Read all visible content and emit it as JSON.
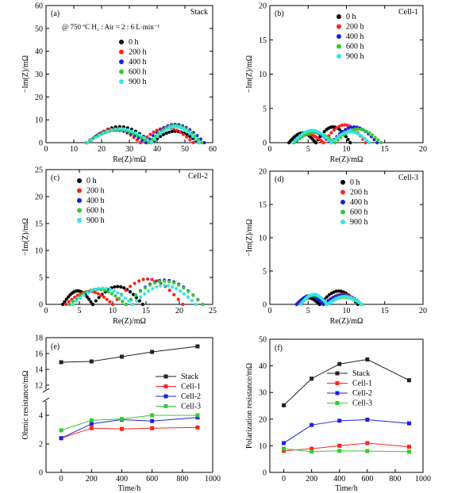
{
  "figure": {
    "panel_labels": [
      "(a)",
      "(b)",
      "(c)",
      "(d)",
      "(e)",
      "(f)"
    ],
    "titles": [
      "Stack",
      "Cell-1",
      "Cell-2",
      "Cell-3"
    ],
    "condition_note": "@ 750 ºC  H₂ : Air = 2 : 6 L·min⁻¹",
    "colors": {
      "0 h": "#000000",
      "200 h": "#ff2222",
      "400 h": "#1f1fe0",
      "600 h": "#33cc33",
      "900 h": "#33e6e6"
    }
  },
  "chart_data": [
    {
      "type": "scatter",
      "panel": "(a)",
      "title": "Stack",
      "xlabel": "Re(Z)/mΩ",
      "ylabel": "−Im(Z)/mΩ",
      "xlim": [
        0,
        60
      ],
      "ylim": [
        0,
        60
      ],
      "xticks": [
        0,
        10,
        20,
        30,
        40,
        50,
        60
      ],
      "yticks": [
        0,
        10,
        20,
        30,
        40,
        50,
        60
      ],
      "legend_position": "upper-middle",
      "series": [
        {
          "name": "0 h",
          "arcs": [
            [
              15,
              38,
              7.0
            ],
            [
              38,
              55,
              5.0
            ]
          ]
        },
        {
          "name": "200 h",
          "arcs": [
            [
              15,
              34,
              6.0
            ],
            [
              34,
              53,
              6.5
            ]
          ]
        },
        {
          "name": "400 h",
          "arcs": [
            [
              14.5,
              36,
              5.5
            ],
            [
              36,
              57,
              8.0
            ]
          ]
        },
        {
          "name": "600 h",
          "arcs": [
            [
              14.5,
              37,
              5.5
            ],
            [
              37,
              56,
              7.5
            ]
          ]
        },
        {
          "name": "900 h",
          "arcs": [
            [
              15,
              38,
              6.0
            ],
            [
              38,
              55,
              7.0
            ]
          ]
        }
      ]
    },
    {
      "type": "scatter",
      "panel": "(b)",
      "title": "Cell-1",
      "xlabel": "Re(Z)/mΩ",
      "ylabel": "−Im(Z)/mΩ",
      "xlim": [
        0,
        20
      ],
      "ylim": [
        0,
        20
      ],
      "xticks": [
        0,
        5,
        10,
        15,
        20
      ],
      "yticks": [
        0,
        5,
        10,
        15,
        20
      ],
      "legend_position": "top-left",
      "series": [
        {
          "name": "0 h",
          "arcs": [
            [
              2.5,
              6,
              1.4
            ],
            [
              6,
              10.5,
              2.3
            ]
          ]
        },
        {
          "name": "200 h",
          "arcs": [
            [
              3,
              7,
              1.2
            ],
            [
              7,
              12.5,
              2.6
            ]
          ]
        },
        {
          "name": "400 h",
          "arcs": [
            [
              3,
              8,
              1.6
            ],
            [
              8,
              14,
              2.3
            ]
          ]
        },
        {
          "name": "600 h",
          "arcs": [
            [
              3.2,
              8.5,
              1.5
            ],
            [
              8.5,
              14.5,
              2.0
            ]
          ]
        },
        {
          "name": "900 h",
          "arcs": [
            [
              3,
              8,
              1.8
            ],
            [
              8,
              13,
              1.6
            ]
          ]
        }
      ]
    },
    {
      "type": "scatter",
      "panel": "(c)",
      "title": "Cell-2",
      "xlabel": "Re(Z)/mΩ",
      "ylabel": "−Im(Z)/mΩ",
      "xlim": [
        0,
        25
      ],
      "ylim": [
        0,
        25
      ],
      "xticks": [
        0,
        5,
        10,
        15,
        20,
        25
      ],
      "yticks": [
        0,
        5,
        10,
        15,
        20,
        25
      ],
      "legend_position": "top-left",
      "series": [
        {
          "name": "0 h",
          "arcs": [
            [
              2.5,
              7,
              2.5
            ],
            [
              7,
              14.5,
              3.3
            ]
          ]
        },
        {
          "name": "200 h",
          "arcs": [
            [
              3,
              10,
              2.4
            ],
            [
              10,
              20.5,
              4.7
            ]
          ]
        },
        {
          "name": "400 h",
          "arcs": [
            [
              3.5,
              12,
              2.8
            ],
            [
              12,
              23.5,
              4.5
            ]
          ]
        },
        {
          "name": "600 h",
          "arcs": [
            [
              3.5,
              12,
              2.8
            ],
            [
              12,
              23.5,
              4.3
            ]
          ]
        },
        {
          "name": "900 h",
          "arcs": [
            [
              4,
              13,
              3.0
            ],
            [
              13,
              22.5,
              3.5
            ]
          ]
        }
      ]
    },
    {
      "type": "scatter",
      "panel": "(d)",
      "title": "Cell-3",
      "xlabel": "Re(Z)/mΩ",
      "ylabel": "−Im(Z)/mΩ",
      "xlim": [
        0,
        20
      ],
      "ylim": [
        0,
        20
      ],
      "xticks": [
        0,
        5,
        10,
        15,
        20
      ],
      "yticks": [
        0,
        5,
        10,
        15,
        20
      ],
      "legend_position": "top-left",
      "series": [
        {
          "name": "0 h",
          "arcs": [
            [
              3.5,
              6.5,
              1.0
            ],
            [
              6.5,
              11.5,
              2.0
            ]
          ]
        },
        {
          "name": "200 h",
          "arcs": [
            [
              3.5,
              7,
              1.3
            ],
            [
              7,
              12,
              1.5
            ]
          ]
        },
        {
          "name": "400 h",
          "arcs": [
            [
              3.5,
              7,
              1.3
            ],
            [
              7,
              12,
              1.4
            ]
          ]
        },
        {
          "name": "600 h",
          "arcs": [
            [
              4,
              7.5,
              1.4
            ],
            [
              7.5,
              12,
              1.1
            ]
          ]
        },
        {
          "name": "900 h",
          "arcs": [
            [
              4,
              7.5,
              1.5
            ],
            [
              7.5,
              12,
              1.2
            ]
          ]
        }
      ]
    },
    {
      "type": "line",
      "panel": "(e)",
      "xlabel": "Time/h",
      "ylabel": "Ohmic resistance/mΩ",
      "x": [
        0,
        200,
        400,
        600,
        900
      ],
      "xlim": [
        -100,
        1000
      ],
      "xticks": [
        0,
        200,
        400,
        600,
        800,
        1000
      ],
      "y_axis_break": true,
      "yticks_lower": [
        0,
        2,
        4
      ],
      "yticks_upper": [
        12,
        14,
        16,
        18
      ],
      "legend_position": "center-right",
      "series": [
        {
          "name": "Stack",
          "values": [
            14.9,
            15.0,
            15.6,
            16.2,
            16.9
          ]
        },
        {
          "name": "Cell-1",
          "values": [
            2.4,
            3.1,
            3.05,
            3.1,
            3.15
          ]
        },
        {
          "name": "Cell-2",
          "values": [
            2.4,
            3.4,
            3.7,
            3.6,
            3.85
          ]
        },
        {
          "name": "Cell-3",
          "values": [
            2.95,
            3.65,
            3.75,
            4.0,
            4.0
          ]
        }
      ]
    },
    {
      "type": "line",
      "panel": "(f)",
      "xlabel": "Time/h",
      "ylabel": "Polarization resistance/mΩ",
      "x": [
        0,
        200,
        400,
        600,
        900
      ],
      "xlim": [
        -100,
        1000
      ],
      "ylim": [
        0,
        50
      ],
      "xticks": [
        0,
        200,
        400,
        600,
        800,
        1000
      ],
      "yticks": [
        0,
        10,
        20,
        30,
        40,
        50
      ],
      "legend_position": "center-right",
      "series": [
        {
          "name": "Stack",
          "values": [
            25.2,
            35.2,
            40.7,
            42.4,
            34.6
          ]
        },
        {
          "name": "Cell-1",
          "values": [
            8.1,
            8.9,
            10.0,
            11.0,
            9.6
          ]
        },
        {
          "name": "Cell-2",
          "values": [
            11.0,
            17.8,
            19.4,
            19.8,
            18.4
          ]
        },
        {
          "name": "Cell-3",
          "values": [
            8.9,
            7.8,
            8.1,
            8.0,
            7.8
          ]
        }
      ]
    }
  ]
}
